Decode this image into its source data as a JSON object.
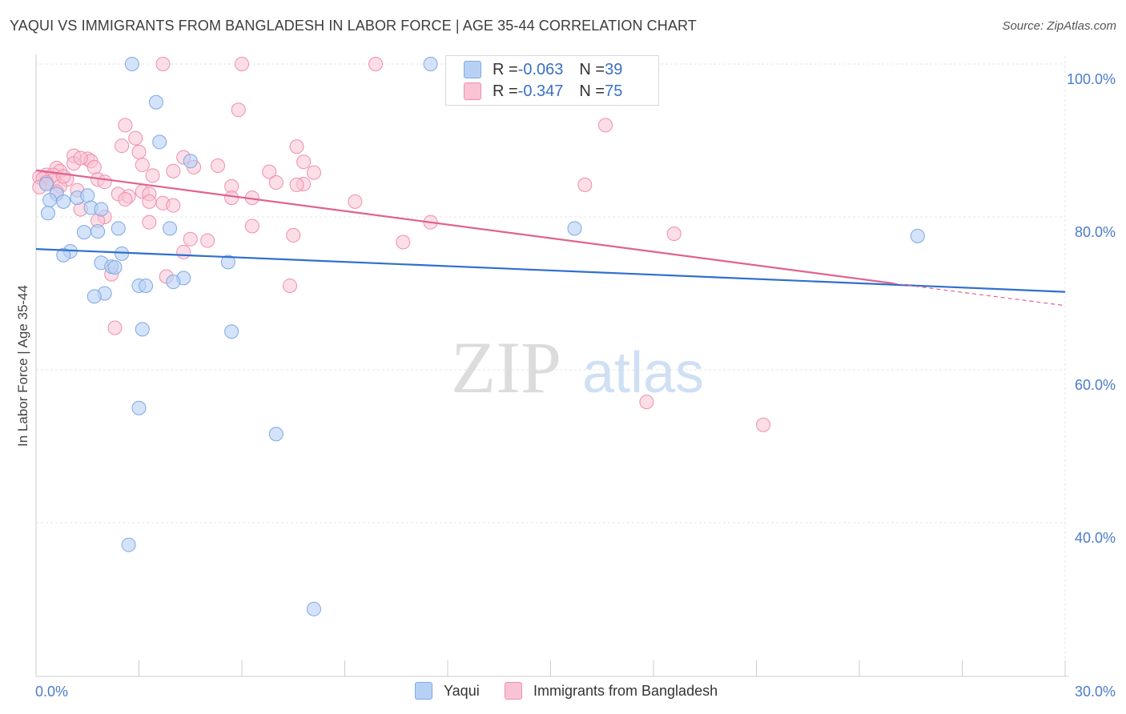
{
  "header": {
    "title": "YAQUI VS IMMIGRANTS FROM BANGLADESH IN LABOR FORCE | AGE 35-44 CORRELATION CHART",
    "source": "Source: ZipAtlas.com"
  },
  "watermark": {
    "zip": "ZIP",
    "atlas": "atlas"
  },
  "legend_top": {
    "rows": [
      {
        "r_label": "R = ",
        "r_value": "-0.063",
        "n_label": "N = ",
        "n_value": "39"
      },
      {
        "r_label": "R = ",
        "r_value": "-0.347",
        "n_label": "N = ",
        "n_value": "75"
      }
    ]
  },
  "chart_data": {
    "type": "scatter",
    "title": "YAQUI VS IMMIGRANTS FROM BANGLADESH IN LABOR FORCE | AGE 35-44 CORRELATION CHART",
    "xlabel": "",
    "ylabel": "In Labor Force | Age 35-44",
    "xlim": [
      0,
      30
    ],
    "ylim": [
      20,
      104
    ],
    "x_tick_labels": [
      "0.0%",
      "30.0%"
    ],
    "y_ticks": [
      40,
      60,
      80,
      100
    ],
    "y_tick_labels": [
      "40.0%",
      "60.0%",
      "80.0%",
      "100.0%"
    ],
    "grid": true,
    "legend_position": "bottom",
    "colors": {
      "yaqui_fill": "#b7d1f5",
      "yaqui_stroke": "#7ea8e4",
      "yaqui_line": "#2f6fcf",
      "bangladesh_fill": "#f9c3d4",
      "bangladesh_stroke": "#ee8fae",
      "bangladesh_line": "#e0628f",
      "tick": "#4a7cc9"
    },
    "series": [
      {
        "name": "Yaqui",
        "r": -0.063,
        "n": 39,
        "trend": {
          "x": [
            0,
            30
          ],
          "y": [
            75.8,
            70.2
          ]
        },
        "points": [
          [
            2.8,
            100
          ],
          [
            11.5,
            100
          ],
          [
            3.5,
            95
          ],
          [
            3.6,
            89.8
          ],
          [
            4.5,
            87.3
          ],
          [
            0.3,
            84.3
          ],
          [
            0.6,
            83
          ],
          [
            1.2,
            82.5
          ],
          [
            1.5,
            82.8
          ],
          [
            0.8,
            82
          ],
          [
            1.6,
            81.2
          ],
          [
            1.9,
            81
          ],
          [
            0.4,
            82.2
          ],
          [
            0.35,
            80.5
          ],
          [
            1.4,
            78
          ],
          [
            1.8,
            78.1
          ],
          [
            2.4,
            78.5
          ],
          [
            3.9,
            78.5
          ],
          [
            1.0,
            75.5
          ],
          [
            0.8,
            75
          ],
          [
            2.5,
            75.2
          ],
          [
            1.9,
            74
          ],
          [
            2.2,
            73.5
          ],
          [
            2.3,
            73.4
          ],
          [
            5.6,
            74.1
          ],
          [
            4.3,
            72
          ],
          [
            4,
            71.5
          ],
          [
            3.0,
            71
          ],
          [
            3.2,
            71
          ],
          [
            2.0,
            70
          ],
          [
            1.7,
            69.6
          ],
          [
            3.1,
            65.3
          ],
          [
            5.7,
            65
          ],
          [
            3.0,
            55
          ],
          [
            7.0,
            51.6
          ],
          [
            2.7,
            37.1
          ],
          [
            8.1,
            28.7
          ],
          [
            15.7,
            78.5
          ],
          [
            25.7,
            77.5
          ]
        ]
      },
      {
        "name": "Immigrants from Bangladesh",
        "r": -0.347,
        "n": 75,
        "trend": {
          "x": [
            0,
            25
          ],
          "y": [
            86.1,
            71.3
          ]
        },
        "trend_dashed": {
          "x": [
            25,
            30
          ],
          "y": [
            71.3,
            68.4
          ]
        },
        "points": [
          [
            3.7,
            100
          ],
          [
            6.0,
            100
          ],
          [
            9.9,
            100
          ],
          [
            5.9,
            94
          ],
          [
            2.6,
            92
          ],
          [
            16.6,
            92
          ],
          [
            2.9,
            90.3
          ],
          [
            2.5,
            89.3
          ],
          [
            3.0,
            88.5
          ],
          [
            7.6,
            89.2
          ],
          [
            1.1,
            88.0
          ],
          [
            4.3,
            87.8
          ],
          [
            1.5,
            87.6
          ],
          [
            1.6,
            87.3
          ],
          [
            7.8,
            87.2
          ],
          [
            1.1,
            87.0
          ],
          [
            3.1,
            86.8
          ],
          [
            5.3,
            86.7
          ],
          [
            1.7,
            86.5
          ],
          [
            4.6,
            86.5
          ],
          [
            0.6,
            86.4
          ],
          [
            4.0,
            86
          ],
          [
            0.7,
            86
          ],
          [
            6.8,
            85.9
          ],
          [
            8.1,
            85.8
          ],
          [
            0.3,
            85.5
          ],
          [
            0.5,
            85.5
          ],
          [
            0.1,
            85.2
          ],
          [
            3.4,
            85.4
          ],
          [
            0.2,
            85.0
          ],
          [
            0.5,
            84.8
          ],
          [
            0.9,
            84.9
          ],
          [
            1.8,
            84.9
          ],
          [
            0.3,
            84.5
          ],
          [
            2.0,
            84.6
          ],
          [
            7.0,
            84.5
          ],
          [
            7.8,
            84.3
          ],
          [
            7.6,
            84.2
          ],
          [
            16.0,
            84.2
          ],
          [
            0.7,
            84
          ],
          [
            5.7,
            84
          ],
          [
            0.1,
            83.9
          ],
          [
            1.2,
            83.5
          ],
          [
            0.6,
            83.3
          ],
          [
            3.1,
            83.3
          ],
          [
            2.4,
            83
          ],
          [
            3.3,
            83
          ],
          [
            2.7,
            82.7
          ],
          [
            5.7,
            82.5
          ],
          [
            6.3,
            82.5
          ],
          [
            2.6,
            82.3
          ],
          [
            9.3,
            82.0
          ],
          [
            3.3,
            82
          ],
          [
            3.7,
            81.8
          ],
          [
            4.0,
            81.5
          ],
          [
            1.3,
            81
          ],
          [
            2.0,
            80
          ],
          [
            1.8,
            79.5
          ],
          [
            11.5,
            79.3
          ],
          [
            3.3,
            79.3
          ],
          [
            6.3,
            78.8
          ],
          [
            18.6,
            77.8
          ],
          [
            7.5,
            77.6
          ],
          [
            4.5,
            77.1
          ],
          [
            5.0,
            76.9
          ],
          [
            10.7,
            76.7
          ],
          [
            4.3,
            75.4
          ],
          [
            2.2,
            72.5
          ],
          [
            3.8,
            72.2
          ],
          [
            7.4,
            71.0
          ],
          [
            2.3,
            65.5
          ],
          [
            17.8,
            55.8
          ],
          [
            21.2,
            52.8
          ],
          [
            1.3,
            87.7
          ],
          [
            0.8,
            85.3
          ]
        ]
      }
    ]
  },
  "bottom_legend": {
    "items": [
      {
        "label": "Yaqui"
      },
      {
        "label": "Immigrants from Bangladesh"
      }
    ]
  }
}
